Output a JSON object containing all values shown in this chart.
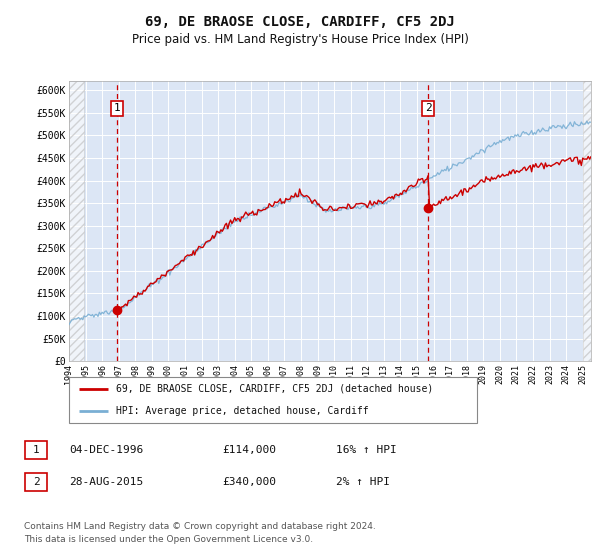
{
  "title": "69, DE BRAOSE CLOSE, CARDIFF, CF5 2DJ",
  "subtitle": "Price paid vs. HM Land Registry's House Price Index (HPI)",
  "title_fontsize": 10,
  "subtitle_fontsize": 8.5,
  "ylim": [
    0,
    620000
  ],
  "xlim_start": 1994.0,
  "xlim_end": 2025.5,
  "yticks": [
    0,
    50000,
    100000,
    150000,
    200000,
    250000,
    300000,
    350000,
    400000,
    450000,
    500000,
    550000,
    600000
  ],
  "ytick_labels": [
    "£0",
    "£50K",
    "£100K",
    "£150K",
    "£200K",
    "£250K",
    "£300K",
    "£350K",
    "£400K",
    "£450K",
    "£500K",
    "£550K",
    "£600K"
  ],
  "background_color": "#ffffff",
  "plot_bg_color": "#dce6f5",
  "grid_color": "#ffffff",
  "red_color": "#cc0000",
  "blue_color": "#7aafd4",
  "sale1_year": 1996.917,
  "sale1_price": 114000,
  "sale2_year": 2015.667,
  "sale2_price": 340000,
  "legend_label1": "69, DE BRAOSE CLOSE, CARDIFF, CF5 2DJ (detached house)",
  "legend_label2": "HPI: Average price, detached house, Cardiff",
  "annot1_date": "04-DEC-1996",
  "annot1_price": "£114,000",
  "annot1_hpi": "16% ↑ HPI",
  "annot2_date": "28-AUG-2015",
  "annot2_price": "£340,000",
  "annot2_hpi": "2% ↑ HPI",
  "footer": "Contains HM Land Registry data © Crown copyright and database right 2024.\nThis data is licensed under the Open Government Licence v3.0."
}
